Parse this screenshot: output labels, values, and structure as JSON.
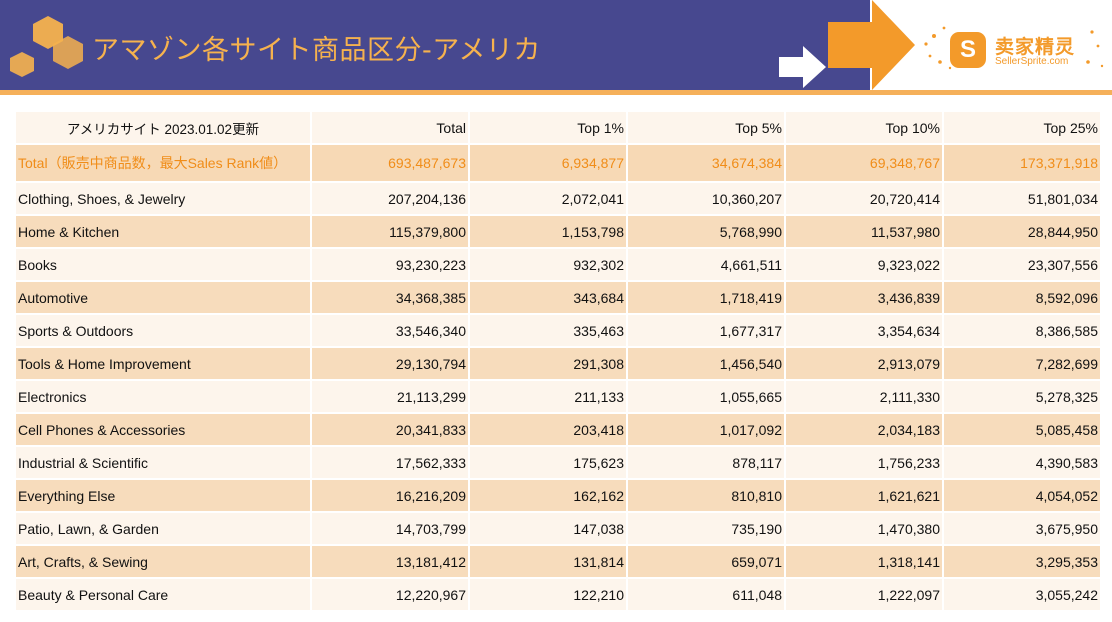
{
  "header": {
    "title": "アマゾン各サイト商品区分-アメリカ",
    "logo_cn": "卖家精灵",
    "logo_en": "SellerSprite.com",
    "logo_mark": "S",
    "colors": {
      "banner": "#47488f",
      "accent": "#f39a2a",
      "title": "#f6b24e"
    }
  },
  "table": {
    "columns": [
      "アメリカサイト 2023.01.02更新",
      "Total",
      "Top 1%",
      "Top 5%",
      "Top 10%",
      "Top 25%"
    ],
    "total_row": [
      "Total（販売中商品数，最大Sales Rank値）",
      "693,487,673",
      "6,934,877",
      "34,674,384",
      "69,348,767",
      "173,371,918"
    ],
    "rows": [
      [
        "Clothing, Shoes, & Jewelry",
        "207,204,136",
        "2,072,041",
        "10,360,207",
        "20,720,414",
        "51,801,034"
      ],
      [
        "Home & Kitchen",
        "115,379,800",
        "1,153,798",
        "5,768,990",
        "11,537,980",
        "28,844,950"
      ],
      [
        "Books",
        "93,230,223",
        "932,302",
        "4,661,511",
        "9,323,022",
        "23,307,556"
      ],
      [
        "Automotive",
        "34,368,385",
        "343,684",
        "1,718,419",
        "3,436,839",
        "8,592,096"
      ],
      [
        "Sports & Outdoors",
        "33,546,340",
        "335,463",
        "1,677,317",
        "3,354,634",
        "8,386,585"
      ],
      [
        "Tools & Home Improvement",
        "29,130,794",
        "291,308",
        "1,456,540",
        "2,913,079",
        "7,282,699"
      ],
      [
        "Electronics",
        "21,113,299",
        "211,133",
        "1,055,665",
        "2,111,330",
        "5,278,325"
      ],
      [
        "Cell Phones & Accessories",
        "20,341,833",
        "203,418",
        "1,017,092",
        "2,034,183",
        "5,085,458"
      ],
      [
        "Industrial & Scientific",
        "17,562,333",
        "175,623",
        "878,117",
        "1,756,233",
        "4,390,583"
      ],
      [
        "Everything Else",
        "16,216,209",
        "162,162",
        "810,810",
        "1,621,621",
        "4,054,052"
      ],
      [
        "Patio, Lawn, & Garden",
        "14,703,799",
        "147,038",
        "735,190",
        "1,470,380",
        "3,675,950"
      ],
      [
        "Art, Crafts, & Sewing",
        "13,181,412",
        "131,814",
        "659,071",
        "1,318,141",
        "3,295,353"
      ],
      [
        "Beauty & Personal Care",
        "12,220,967",
        "122,210",
        "611,048",
        "1,222,097",
        "3,055,242"
      ]
    ]
  }
}
